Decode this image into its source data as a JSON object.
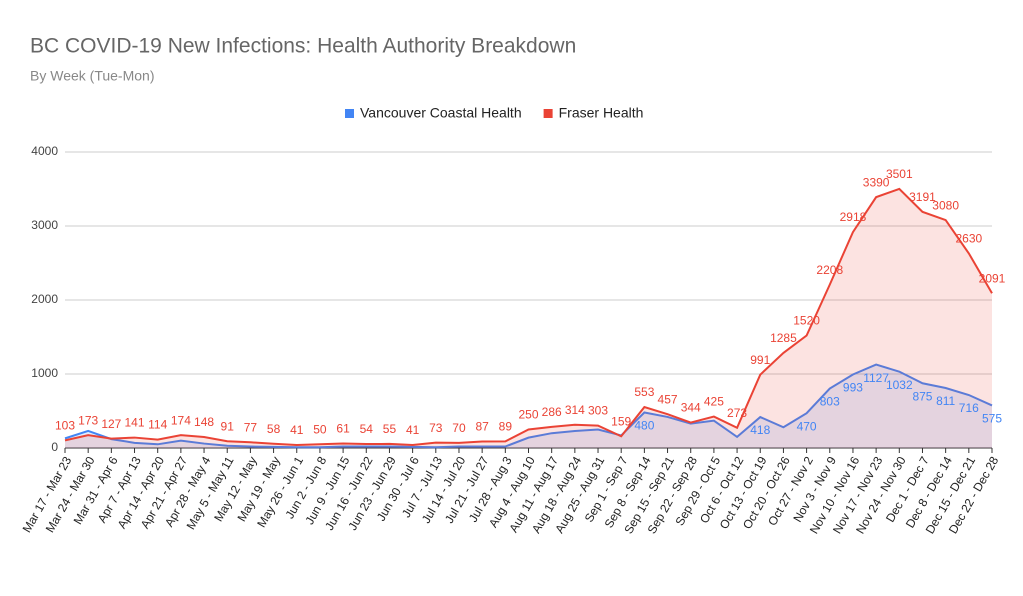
{
  "chart_data": {
    "type": "area",
    "title": "BC COVID-19 New Infections: Health Authority Breakdown",
    "subtitle": "By Week (Tue-Mon)",
    "categories": [
      "Mar 17 - Mar 23",
      "Mar 24 - Mar 30",
      "Mar 31 - Apr 6",
      "Apr 7 - Apr 13",
      "Apr 14 - Apr 20",
      "Apr 21 - Apr 27",
      "Apr 28 - May 4",
      "May 5 - May 11",
      "May 12 - May",
      "May 19 - May",
      "May 26 - Jun 1",
      "Jun 2 - Jun 8",
      "Jun 9 - Jun 15",
      "Jun 16 - Jun 22",
      "Jun 23 - Jun 29",
      "Jun 30 - Jul 6",
      "Jul 7 - Jul 13",
      "Jul 14 - Jul 20",
      "Jul 21 - Jul 27",
      "Jul 28 - Aug 3",
      "Aug 4 - Aug 10",
      "Aug 11 - Aug 17",
      "Aug 18 - Aug 24",
      "Aug 25 - Aug 31",
      "Sep 1 - Sep 7",
      "Sep 8 - Sep 14",
      "Sep 15 - Sep 21",
      "Sep 22 - Sep 28",
      "Sep 29 - Oct 5",
      "Oct 6 - Oct 12",
      "Oct 13 - Oct 19",
      "Oct 20 - Oct 26",
      "Oct 27 - Nov 2",
      "Nov 3 - Nov 9",
      "Nov 10 - Nov 16",
      "Nov 17 - Nov 23",
      "Nov 24 - Nov 30",
      "Dec 1 - Dec 7",
      "Dec 8 - Dec 14",
      "Dec 15 - Dec 21",
      "Dec 22 - Dec 28"
    ],
    "series": [
      {
        "name": "Vancouver Coastal Health",
        "color": "#4285f4",
        "values": [
          130,
          230,
          120,
          70,
          50,
          100,
          60,
          30,
          20,
          15,
          10,
          10,
          20,
          20,
          20,
          15,
          10,
          20,
          20,
          20,
          140,
          200,
          230,
          250,
          170,
          480,
          420,
          330,
          370,
          150,
          418,
          280,
          470,
          803,
          993,
          1127,
          1032,
          875,
          811,
          716,
          575
        ],
        "value_labels": [
          null,
          null,
          null,
          null,
          null,
          null,
          null,
          null,
          null,
          null,
          null,
          null,
          null,
          null,
          null,
          null,
          null,
          null,
          null,
          null,
          null,
          null,
          null,
          null,
          null,
          "480",
          null,
          null,
          null,
          null,
          "418",
          null,
          "470",
          "803",
          "993",
          "1127",
          "1032",
          "875",
          "811",
          "716",
          "575"
        ]
      },
      {
        "name": "Fraser Health",
        "color": "#ea4335",
        "values": [
          103,
          173,
          127,
          141,
          114,
          174,
          148,
          91,
          77,
          58,
          41,
          50,
          61,
          54,
          55,
          41,
          73,
          70,
          87,
          89,
          250,
          286,
          314,
          303,
          159,
          553,
          457,
          344,
          425,
          273,
          991,
          1285,
          1520,
          2208,
          2918,
          3390,
          3501,
          3191,
          3080,
          2630,
          2091
        ]
      }
    ],
    "ylim": [
      0,
      4000
    ],
    "yticks": [
      0,
      1000,
      2000,
      3000,
      4000
    ],
    "grid": true,
    "legend": "top"
  }
}
